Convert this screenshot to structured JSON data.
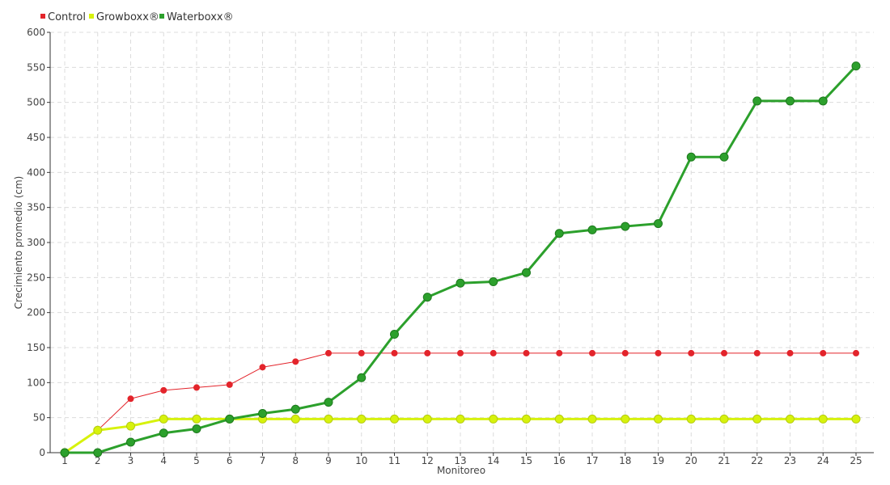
{
  "chart_data": {
    "type": "line",
    "title": "",
    "xlabel": "Monitoreo",
    "ylabel": "Crecimiento promedio (cm)",
    "ylim": [
      0,
      600
    ],
    "y_ticks": [
      0,
      50,
      100,
      150,
      200,
      250,
      300,
      350,
      400,
      450,
      500,
      550,
      600
    ],
    "grid": true,
    "legend_position": "top-left",
    "categories": [
      "1",
      "2",
      "3",
      "4",
      "5",
      "6",
      "7",
      "8",
      "9",
      "10",
      "11",
      "12",
      "13",
      "14",
      "15",
      "16",
      "17",
      "18",
      "19",
      "20",
      "21",
      "22",
      "23",
      "24",
      "25"
    ],
    "series": [
      {
        "name": "Control",
        "color": "#e3242b",
        "values": [
          0,
          32,
          77,
          89,
          93,
          97,
          122,
          130,
          142,
          142,
          142,
          142,
          142,
          142,
          142,
          142,
          142,
          142,
          142,
          142,
          142,
          142,
          142,
          142,
          142
        ]
      },
      {
        "name": "Growboxx®",
        "color": "#d7f20c",
        "values": [
          0,
          32,
          38,
          48,
          48,
          48,
          48,
          48,
          48,
          48,
          48,
          48,
          48,
          48,
          48,
          48,
          48,
          48,
          48,
          48,
          48,
          48,
          48,
          48,
          48
        ]
      },
      {
        "name": "Waterboxx®",
        "color": "#2ca02c",
        "values": [
          0,
          0,
          15,
          28,
          34,
          48,
          56,
          62,
          72,
          107,
          169,
          222,
          242,
          244,
          257,
          313,
          318,
          323,
          327,
          422,
          422,
          502,
          502,
          502,
          552
        ]
      }
    ]
  }
}
